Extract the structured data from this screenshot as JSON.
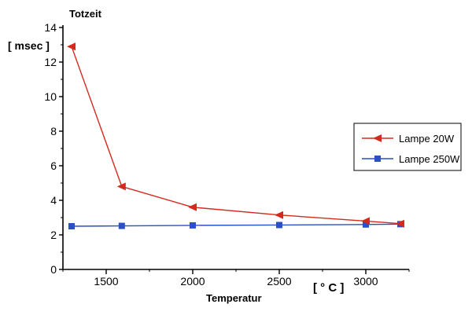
{
  "chart_data": {
    "type": "line",
    "y_title": "Totzeit",
    "y_unit": "[ msec ]",
    "xlabel": "Temperatur",
    "x_unit": "[ ° C ]",
    "xlim": [
      1250,
      3250
    ],
    "ylim": [
      0,
      14
    ],
    "x_ticks": [
      1500,
      2000,
      2500,
      3000
    ],
    "y_ticks": [
      0,
      2,
      4,
      6,
      8,
      10,
      12,
      14
    ],
    "grid": false,
    "legend_position": "right",
    "series": [
      {
        "name": "Lampe 20W",
        "color": "#d42a1e",
        "marker": "triangle-left",
        "x": [
          1300,
          1590,
          2000,
          2500,
          3000,
          3200
        ],
        "y": [
          12.9,
          4.8,
          3.6,
          3.15,
          2.8,
          2.65
        ]
      },
      {
        "name": "Lampe 250W",
        "color": "#2a4fc6",
        "marker": "square",
        "x": [
          1300,
          1590,
          2000,
          2500,
          3000,
          3200
        ],
        "y": [
          2.5,
          2.52,
          2.55,
          2.57,
          2.6,
          2.62
        ]
      }
    ]
  }
}
